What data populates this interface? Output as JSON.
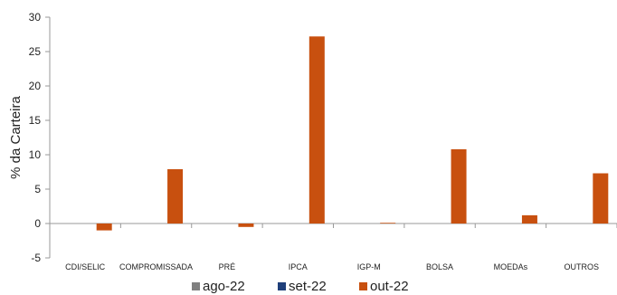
{
  "chart_data": {
    "type": "bar",
    "title": "",
    "xlabel": "",
    "ylabel": "% da Carteira",
    "ylim": [
      -5,
      30
    ],
    "yticks": [
      -5,
      0,
      5,
      10,
      15,
      20,
      25,
      30
    ],
    "categories": [
      "CDI/SELIC",
      "COMPROMISSADA",
      "PRÉ",
      "IPCA",
      "IGP-M",
      "BOLSA",
      "MOEDAs",
      "OUTROS"
    ],
    "series": [
      {
        "name": "ago-22",
        "color": "#808080",
        "values": [
          0,
          0,
          0,
          0,
          0,
          0,
          0,
          0
        ]
      },
      {
        "name": "set-22",
        "color": "#1f3f7a",
        "values": [
          0,
          0,
          0,
          0,
          0,
          0,
          0,
          0
        ]
      },
      {
        "name": "out-22",
        "color": "#c8500f",
        "values": [
          -1.0,
          7.9,
          -0.5,
          27.2,
          0.1,
          10.8,
          1.2,
          7.3
        ]
      }
    ],
    "legend_position": "bottom",
    "grid": false
  }
}
